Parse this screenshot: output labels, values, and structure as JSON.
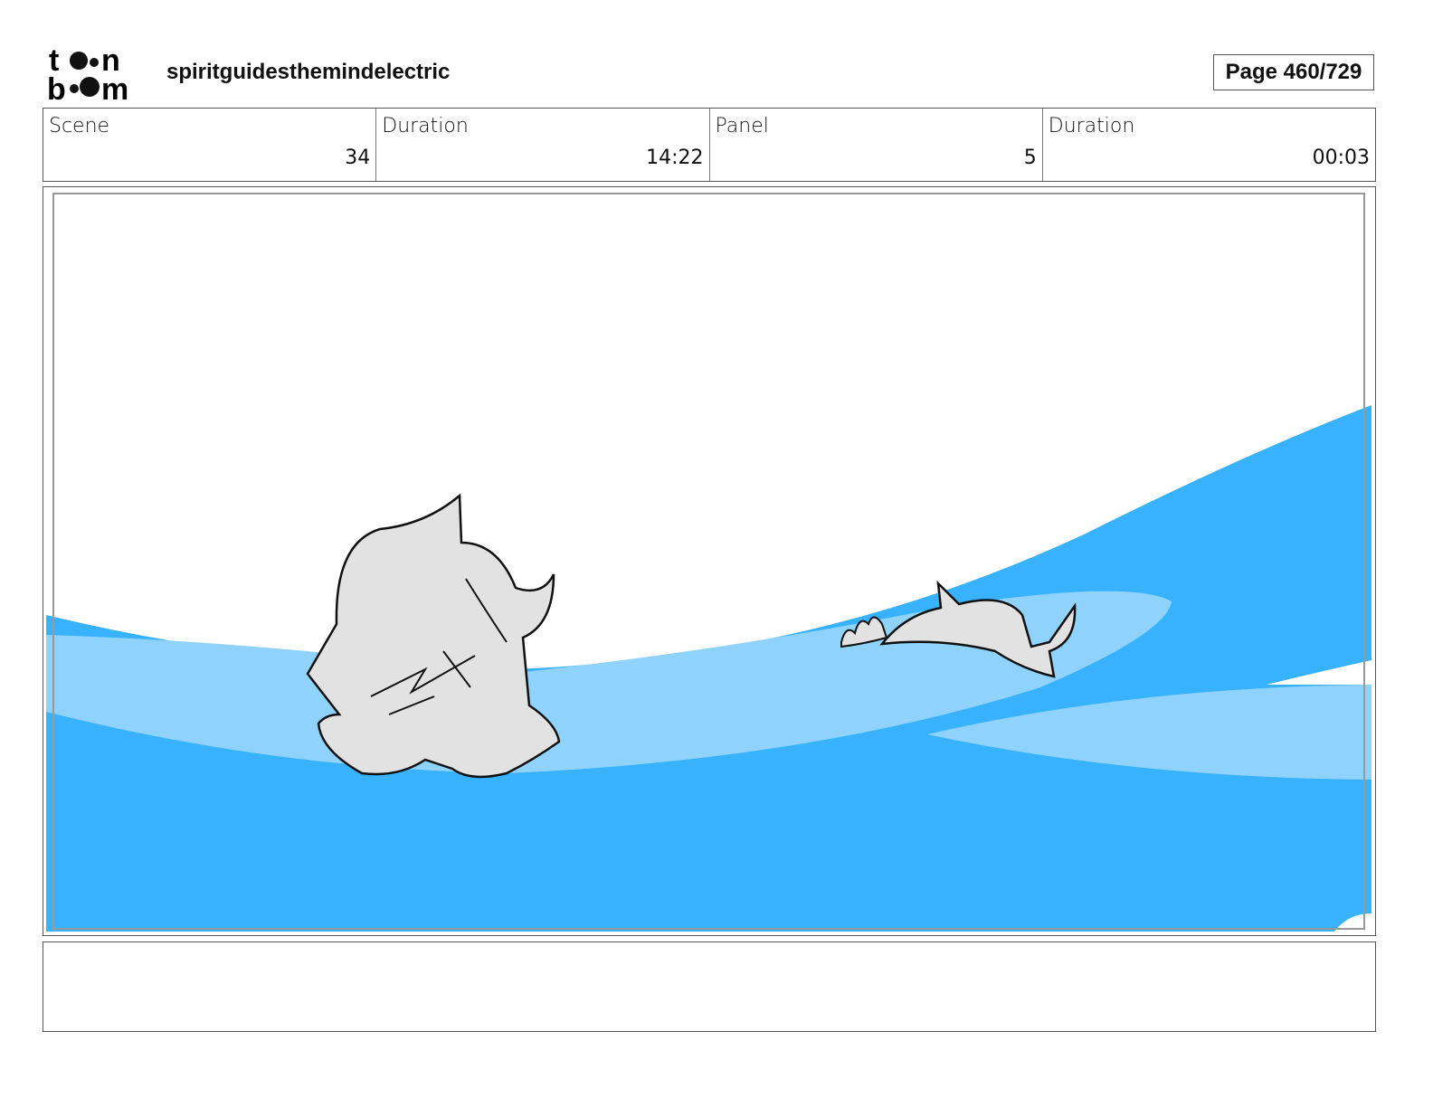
{
  "header": {
    "logo_text": "toon boom",
    "project_title": "spiritguidesthemindelectric",
    "page_label": "Page 460/729"
  },
  "info": {
    "scene_label": "Scene",
    "scene_value": "34",
    "scene_duration_label": "Duration",
    "scene_duration_value": "14:22",
    "panel_label": "Panel",
    "panel_value": "5",
    "panel_duration_label": "Duration",
    "panel_duration_value": "00:03"
  },
  "colors": {
    "water_dark": "#38b2fc",
    "water_light": "#8fd3fc",
    "character_fill": "#e2e2e2"
  },
  "notes": {
    "text": ""
  }
}
